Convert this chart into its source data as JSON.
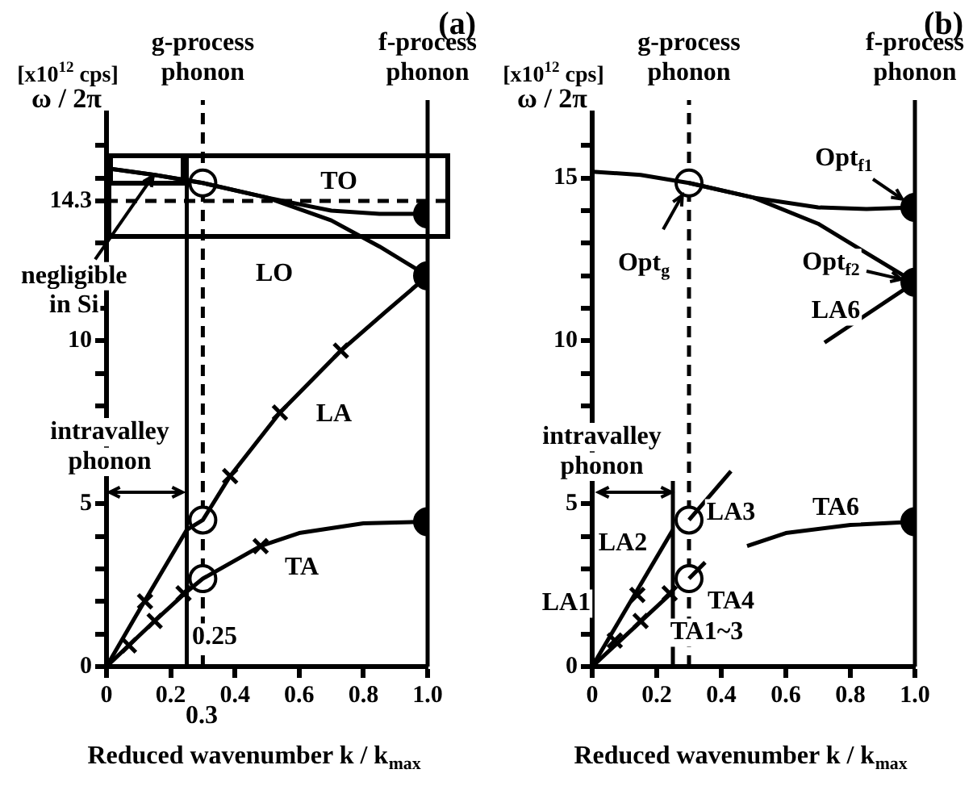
{
  "chart_data": [
    {
      "type": "line",
      "title": "(a)",
      "xlabel": "Reduced wavenumber k / k$_{max}$",
      "ylabel": "ω / 2π",
      "xlim": [
        0,
        1.0
      ],
      "ylim": [
        0,
        17
      ],
      "xticks": [
        0,
        0.2,
        0.4,
        0.6,
        0.8,
        {
          "value": 1.0,
          "label": "1.0"
        }
      ],
      "yticks": [
        0,
        {
          "value": 1,
          "label": null
        },
        {
          "value": 2,
          "label": null
        },
        {
          "value": 3,
          "label": null
        },
        {
          "value": 4,
          "label": null
        },
        5,
        {
          "value": 6,
          "label": null
        },
        {
          "value": 7,
          "label": null
        },
        {
          "value": 8,
          "label": null
        },
        {
          "value": 9,
          "label": null
        },
        10,
        {
          "value": 11,
          "label": null
        },
        {
          "value": 12,
          "label": null
        },
        {
          "value": 13,
          "label": null
        },
        14.3,
        {
          "value": 15,
          "label": null
        },
        {
          "value": 16,
          "label": null
        }
      ],
      "grid": false,
      "legend": false,
      "series": [
        {
          "type": "line",
          "color": "#000000",
          "marker": "none",
          "x": [
            0,
            0.1,
            0.25,
            0.3,
            0.385,
            0.54,
            0.73,
            0.87,
            1.0
          ],
          "values": [
            0,
            1.7,
            4.2,
            4.5,
            5.85,
            7.8,
            9.7,
            10.9,
            12.0
          ]
        },
        {
          "type": "line",
          "color": "#000000",
          "marker": "none",
          "x": [
            0,
            0.15,
            0.25,
            0.3,
            0.48,
            0.6,
            0.8,
            1.0
          ],
          "values": [
            0,
            1.4,
            2.3,
            2.7,
            3.7,
            4.1,
            4.4,
            4.45
          ]
        },
        {
          "type": "line",
          "color": "#000000",
          "marker": "none",
          "x": [
            0,
            0.15,
            0.3,
            0.5,
            0.7,
            0.85,
            1.0
          ],
          "values": [
            15.3,
            15.1,
            14.85,
            14.4,
            13.7,
            12.9,
            12.0
          ]
        },
        {
          "type": "line",
          "color": "#000000",
          "marker": "none",
          "x": [
            0,
            0.15,
            0.3,
            0.5,
            0.7,
            0.85,
            1.0
          ],
          "values": [
            15.3,
            15.1,
            14.85,
            14.4,
            14.0,
            13.9,
            13.9
          ]
        },
        {
          "type": "line",
          "color": "#000000",
          "marker": "none",
          "x": [
            0.25,
            0.25
          ],
          "values": [
            0,
            15.7
          ]
        },
        {
          "type": "scatter",
          "color": "#000000",
          "marker": "cross",
          "x": [
            0.12,
            0.385,
            0.54,
            0.73,
            0.07,
            0.15,
            0.24,
            0.48
          ],
          "values": [
            2.0,
            5.85,
            7.8,
            9.7,
            0.65,
            1.4,
            2.25,
            3.7
          ]
        },
        {
          "type": "scatter",
          "color": "#ffffff",
          "marker": "circle",
          "x": [
            0.3,
            0.3,
            0.3
          ],
          "values": [
            14.85,
            4.5,
            2.7
          ]
        },
        {
          "type": "scatter",
          "color": "#000000",
          "marker": "circle",
          "x": [
            1.0,
            1.0,
            1.0
          ],
          "values": [
            13.9,
            12.0,
            4.45
          ]
        }
      ],
      "ref_lines": [
        {
          "axis": "x",
          "value": 0.3,
          "label": "g-process phonon",
          "line_style": "dashed"
        },
        {
          "axis": "x",
          "value": 1.0,
          "label": "f-process phonon",
          "line_style": "solid"
        },
        {
          "axis": "y",
          "value": 14.3,
          "line_style": "dashed"
        }
      ],
      "annotations": [
        "[x10$^{12}$ cps]",
        {
          "text": "negligible in Si",
          "x": 0.15,
          "y": 15.1
        },
        "LA",
        "TA",
        "LO",
        "TO",
        "intravalley phonon",
        "0.25",
        "0.3"
      ]
    },
    {
      "type": "line",
      "title": "(b)",
      "xlabel": "Reduced wavenumber k / k$_{max}$",
      "ylabel": "ω / 2π",
      "xlim": [
        0,
        1.0
      ],
      "ylim": [
        0,
        17
      ],
      "xticks": [
        0,
        0.2,
        0.4,
        0.6,
        0.8,
        {
          "value": 1.0,
          "label": "1.0"
        }
      ],
      "yticks": [
        0,
        {
          "value": 1,
          "label": null
        },
        {
          "value": 2,
          "label": null
        },
        {
          "value": 3,
          "label": null
        },
        {
          "value": 4,
          "label": null
        },
        5,
        {
          "value": 6,
          "label": null
        },
        {
          "value": 7,
          "label": null
        },
        {
          "value": 8,
          "label": null
        },
        {
          "value": 9,
          "label": null
        },
        10,
        {
          "value": 11,
          "label": null
        },
        {
          "value": 12,
          "label": null
        },
        {
          "value": 13,
          "label": null
        },
        {
          "value": 14,
          "label": null
        },
        15,
        {
          "value": 16,
          "label": null
        }
      ],
      "grid": false,
      "legend": false,
      "series": [
        {
          "type": "line",
          "color": "#000000",
          "marker": "none",
          "x": [
            0,
            0.15,
            0.3,
            0.5,
            0.7,
            0.85,
            1.0
          ],
          "values": [
            15.2,
            15.1,
            14.85,
            14.4,
            14.1,
            14.05,
            14.1
          ]
        },
        {
          "type": "line",
          "color": "#000000",
          "marker": "none",
          "x": [
            0.3,
            0.5,
            0.7,
            0.85,
            1.0
          ],
          "values": [
            14.85,
            14.4,
            13.6,
            12.7,
            11.8
          ]
        },
        {
          "type": "line",
          "color": "#000000",
          "marker": "none",
          "x": [
            1.0,
            0.72
          ],
          "values": [
            11.8,
            9.95
          ]
        },
        {
          "type": "line",
          "color": "#000000",
          "marker": "none",
          "x": [
            1.0,
            0.8,
            0.6,
            0.48
          ],
          "values": [
            4.45,
            4.35,
            4.1,
            3.7
          ]
        },
        {
          "type": "line",
          "color": "#000000",
          "marker": "none",
          "x": [
            0,
            0.25
          ],
          "values": [
            0,
            4.2
          ]
        },
        {
          "type": "line",
          "color": "#000000",
          "marker": "none",
          "x": [
            0.3,
            0.43
          ],
          "values": [
            4.5,
            6.0
          ]
        },
        {
          "type": "line",
          "color": "#000000",
          "marker": "none",
          "x": [
            0,
            0.25
          ],
          "values": [
            0,
            2.3
          ]
        },
        {
          "type": "line",
          "color": "#000000",
          "marker": "none",
          "x": [
            0.3,
            0.35
          ],
          "values": [
            2.7,
            3.2
          ]
        },
        {
          "type": "line",
          "color": "#000000",
          "marker": "none",
          "x": [
            0.25,
            0.25
          ],
          "values": [
            0,
            5.7
          ]
        },
        {
          "type": "scatter",
          "color": "#000000",
          "marker": "cross",
          "x": [
            0.14,
            0.07,
            0.15,
            0.24
          ],
          "values": [
            2.2,
            0.8,
            1.4,
            2.25
          ]
        },
        {
          "type": "scatter",
          "color": "#ffffff",
          "marker": "circle",
          "x": [
            0.3,
            0.3,
            0.3
          ],
          "values": [
            14.85,
            4.5,
            2.7
          ]
        },
        {
          "type": "scatter",
          "color": "#000000",
          "marker": "circle",
          "x": [
            1.0,
            1.0,
            1.0
          ],
          "values": [
            14.1,
            11.8,
            4.45
          ]
        }
      ],
      "ref_lines": [
        {
          "axis": "x",
          "value": 0.3,
          "label": "g-process phonon",
          "line_style": "dashed"
        },
        {
          "axis": "x",
          "value": 1.0,
          "label": "f-process phonon",
          "line_style": "solid"
        }
      ],
      "annotations": [
        "[x10$^{12}$ cps]",
        "intravalley phonon",
        "LA1",
        "LA2",
        "LA3",
        "TA1~3",
        "TA4",
        "TA6",
        "LA6",
        {
          "text": "Opt$_{f1}$",
          "x": 1.0,
          "y": 14.1
        },
        {
          "text": "Opt$_{f2}$",
          "x": 1.0,
          "y": 11.8
        },
        {
          "text": "Opt$_{g}$",
          "x": 0.3,
          "y": 14.85
        }
      ]
    }
  ]
}
